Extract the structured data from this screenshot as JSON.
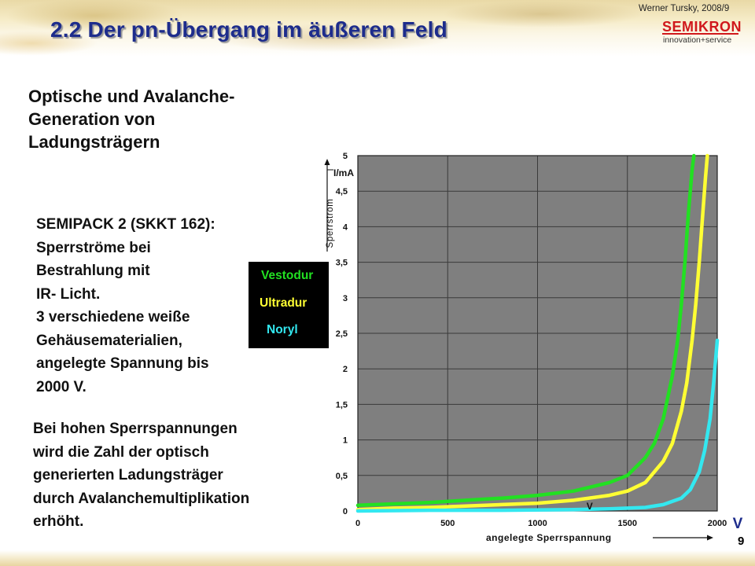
{
  "header": {
    "title": "2.2 Der pn-Übergang im äußeren Feld",
    "author": "Werner Tursky, 2008/9",
    "logo_word": "SEMIKRON",
    "logo_tagline": "innovation+service"
  },
  "text": {
    "subtitle_lines": [
      "Optische und Avalanche-",
      "Generation von",
      "Ladungsträgern"
    ],
    "paragraph1_lines": [
      "SEMIPACK 2 (SKKT 162):",
      "Sperrströme bei",
      "Bestrahlung mit",
      "IR- Licht.",
      "3 verschiedene weiße",
      "Gehäusematerialien,",
      "angelegte Spannung bis",
      "2000 V."
    ],
    "paragraph2_lines": [
      "Bei hohen Sperrspannungen",
      "wird die Zahl der optisch",
      "generierten Ladungsträger",
      "durch Avalanchemultiplikation",
      "erhöht."
    ]
  },
  "page_number": "9",
  "colors": {
    "title": "#1d2c8c",
    "plot_bg": "#7f7f7f",
    "grid": "#3a3a3a",
    "logo_red": "#d0181c"
  },
  "chart_data": {
    "type": "line",
    "title": "",
    "xlabel": "angelegte Sperrspannung",
    "ylabel": "Sperrstrom",
    "y_unit_label": "I/mA",
    "x_unit_label": "V",
    "x_unit_label_inside": "V",
    "xlim": [
      0,
      2000
    ],
    "ylim": [
      0,
      5
    ],
    "xticks": [
      0,
      500,
      1000,
      1500,
      2000
    ],
    "xtick_labels": [
      "0",
      "500",
      "1000",
      "1500",
      "2000"
    ],
    "yticks": [
      0,
      0.5,
      1,
      1.5,
      2,
      2.5,
      3,
      3.5,
      4,
      4.5,
      5
    ],
    "ytick_labels": [
      "0",
      "0,5",
      "1",
      "1,5",
      "2",
      "2,5",
      "3",
      "3,5",
      "4",
      "4,5",
      "5"
    ],
    "grid": true,
    "legend_placement": "left, outside plot",
    "series": [
      {
        "name": "Vestodur",
        "color": "#22e022",
        "x": [
          0,
          200,
          400,
          600,
          800,
          1000,
          1200,
          1400,
          1500,
          1600,
          1650,
          1700,
          1750,
          1780,
          1800,
          1820,
          1840,
          1860,
          1870
        ],
        "y": [
          0.08,
          0.1,
          0.12,
          0.15,
          0.18,
          0.22,
          0.28,
          0.4,
          0.5,
          0.75,
          0.95,
          1.3,
          1.9,
          2.4,
          2.9,
          3.5,
          4.2,
          4.8,
          5.0
        ]
      },
      {
        "name": "Ultradur",
        "color": "#ffff33",
        "x": [
          0,
          200,
          400,
          600,
          800,
          1000,
          1200,
          1400,
          1500,
          1600,
          1700,
          1750,
          1800,
          1830,
          1860,
          1880,
          1900,
          1920,
          1935,
          1945
        ],
        "y": [
          0.02,
          0.04,
          0.05,
          0.07,
          0.09,
          0.11,
          0.15,
          0.22,
          0.28,
          0.4,
          0.7,
          0.95,
          1.4,
          1.8,
          2.4,
          2.9,
          3.5,
          4.2,
          4.7,
          5.0
        ]
      },
      {
        "name": "Noryl",
        "color": "#33e8f0",
        "x": [
          0,
          400,
          800,
          1200,
          1400,
          1600,
          1700,
          1800,
          1850,
          1900,
          1930,
          1960,
          1980,
          2000
        ],
        "y": [
          0.0,
          0.01,
          0.01,
          0.02,
          0.03,
          0.05,
          0.09,
          0.18,
          0.3,
          0.55,
          0.85,
          1.3,
          1.8,
          2.4
        ]
      }
    ]
  }
}
